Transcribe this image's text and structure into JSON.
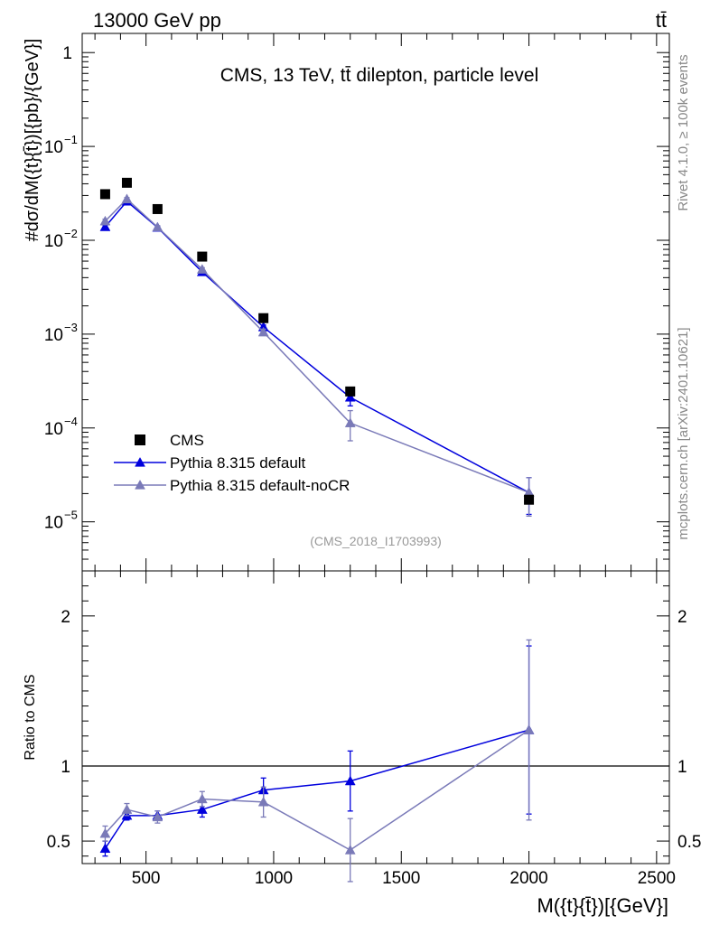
{
  "header": {
    "left": "13000 GeV pp",
    "right": "tt̄"
  },
  "side_labels": {
    "rivet": "Rivet 4.1.0, ≥ 100k events",
    "mcplots": "mcplots.cern.ch [arXiv:2401.10621]"
  },
  "chart_data": {
    "type": "line",
    "title": "CMS, 13 TeV, tt̄ dilepton, particle level",
    "analysis_tag": "(CMS_2018_I1703993)",
    "ylabel": "#dσ/dM({t}{t̄})[{pb}/{GeV}]",
    "xlabel": "M({t}{t̄})[{GeV}]",
    "ratio_ylabel": "Ratio to CMS",
    "xlim": [
      250,
      2550
    ],
    "ylim": [
      3e-06,
      1.6
    ],
    "ylog": true,
    "ratio_ylim": [
      0.35,
      2.3
    ],
    "x_ticks": [
      500,
      1000,
      1500,
      2000,
      2500
    ],
    "x_tick_labels": [
      "500",
      "1000",
      "1500",
      "2000",
      "2500"
    ],
    "y_ticks": [
      {
        "value": 1,
        "base": "1",
        "exp": ""
      },
      {
        "value": 0.1,
        "base": "10",
        "exp": "−1"
      },
      {
        "value": 0.01,
        "base": "10",
        "exp": "−2"
      },
      {
        "value": 0.001,
        "base": "10",
        "exp": "−3"
      },
      {
        "value": 0.0001,
        "base": "10",
        "exp": "−4"
      },
      {
        "value": 1e-05,
        "base": "10",
        "exp": "−5"
      }
    ],
    "ratio_ticks": [
      {
        "value": 0.5,
        "label": "0.5"
      },
      {
        "value": 1,
        "label": "1"
      },
      {
        "value": 2,
        "label": "2"
      }
    ],
    "x": [
      340,
      425,
      545,
      720,
      960,
      1300,
      2000
    ],
    "legend": {
      "position": "bottom-left",
      "entries": [
        "CMS",
        "Pythia 8.315 default",
        "Pythia 8.315 default-noCR"
      ]
    },
    "series": [
      {
        "name": "CMS",
        "kind": "data",
        "color": "#000000",
        "values": [
          0.031,
          0.041,
          0.0215,
          0.0067,
          0.00148,
          0.000245,
          1.72e-05
        ]
      },
      {
        "name": "Pythia 8.315 default",
        "kind": "mc",
        "color": "#0000dd",
        "values": [
          0.0139,
          0.026,
          0.0137,
          0.0046,
          0.00119,
          0.000212,
          2.05e-05
        ],
        "err_low": [
          0.0006,
          0.0008,
          0.0004,
          0.00015,
          6e-05,
          4e-05,
          8.5e-06
        ],
        "err_high": [
          0.0006,
          0.0008,
          0.0004,
          0.00015,
          6e-05,
          4e-05,
          9e-06
        ],
        "ratio": [
          0.45,
          0.67,
          0.67,
          0.71,
          0.84,
          0.9,
          1.24
        ],
        "ratio_err": [
          0.05,
          0.03,
          0.03,
          0.05,
          0.08,
          0.2,
          0.56
        ]
      },
      {
        "name": "Pythia 8.315 default-noCR",
        "kind": "mc",
        "color": "#7a7ab8",
        "values": [
          0.016,
          0.0275,
          0.0138,
          0.0049,
          0.00105,
          0.000113,
          2.05e-05
        ],
        "err_low": [
          0.0008,
          0.001,
          0.0005,
          0.0002,
          8e-05,
          4e-05,
          9e-06
        ],
        "err_high": [
          0.0008,
          0.001,
          0.0005,
          0.0002,
          8e-05,
          4e-05,
          9e-06
        ],
        "ratio": [
          0.55,
          0.71,
          0.66,
          0.78,
          0.76,
          0.44,
          1.24
        ],
        "ratio_err": [
          0.05,
          0.04,
          0.04,
          0.05,
          0.1,
          0.21,
          0.6
        ]
      }
    ]
  }
}
